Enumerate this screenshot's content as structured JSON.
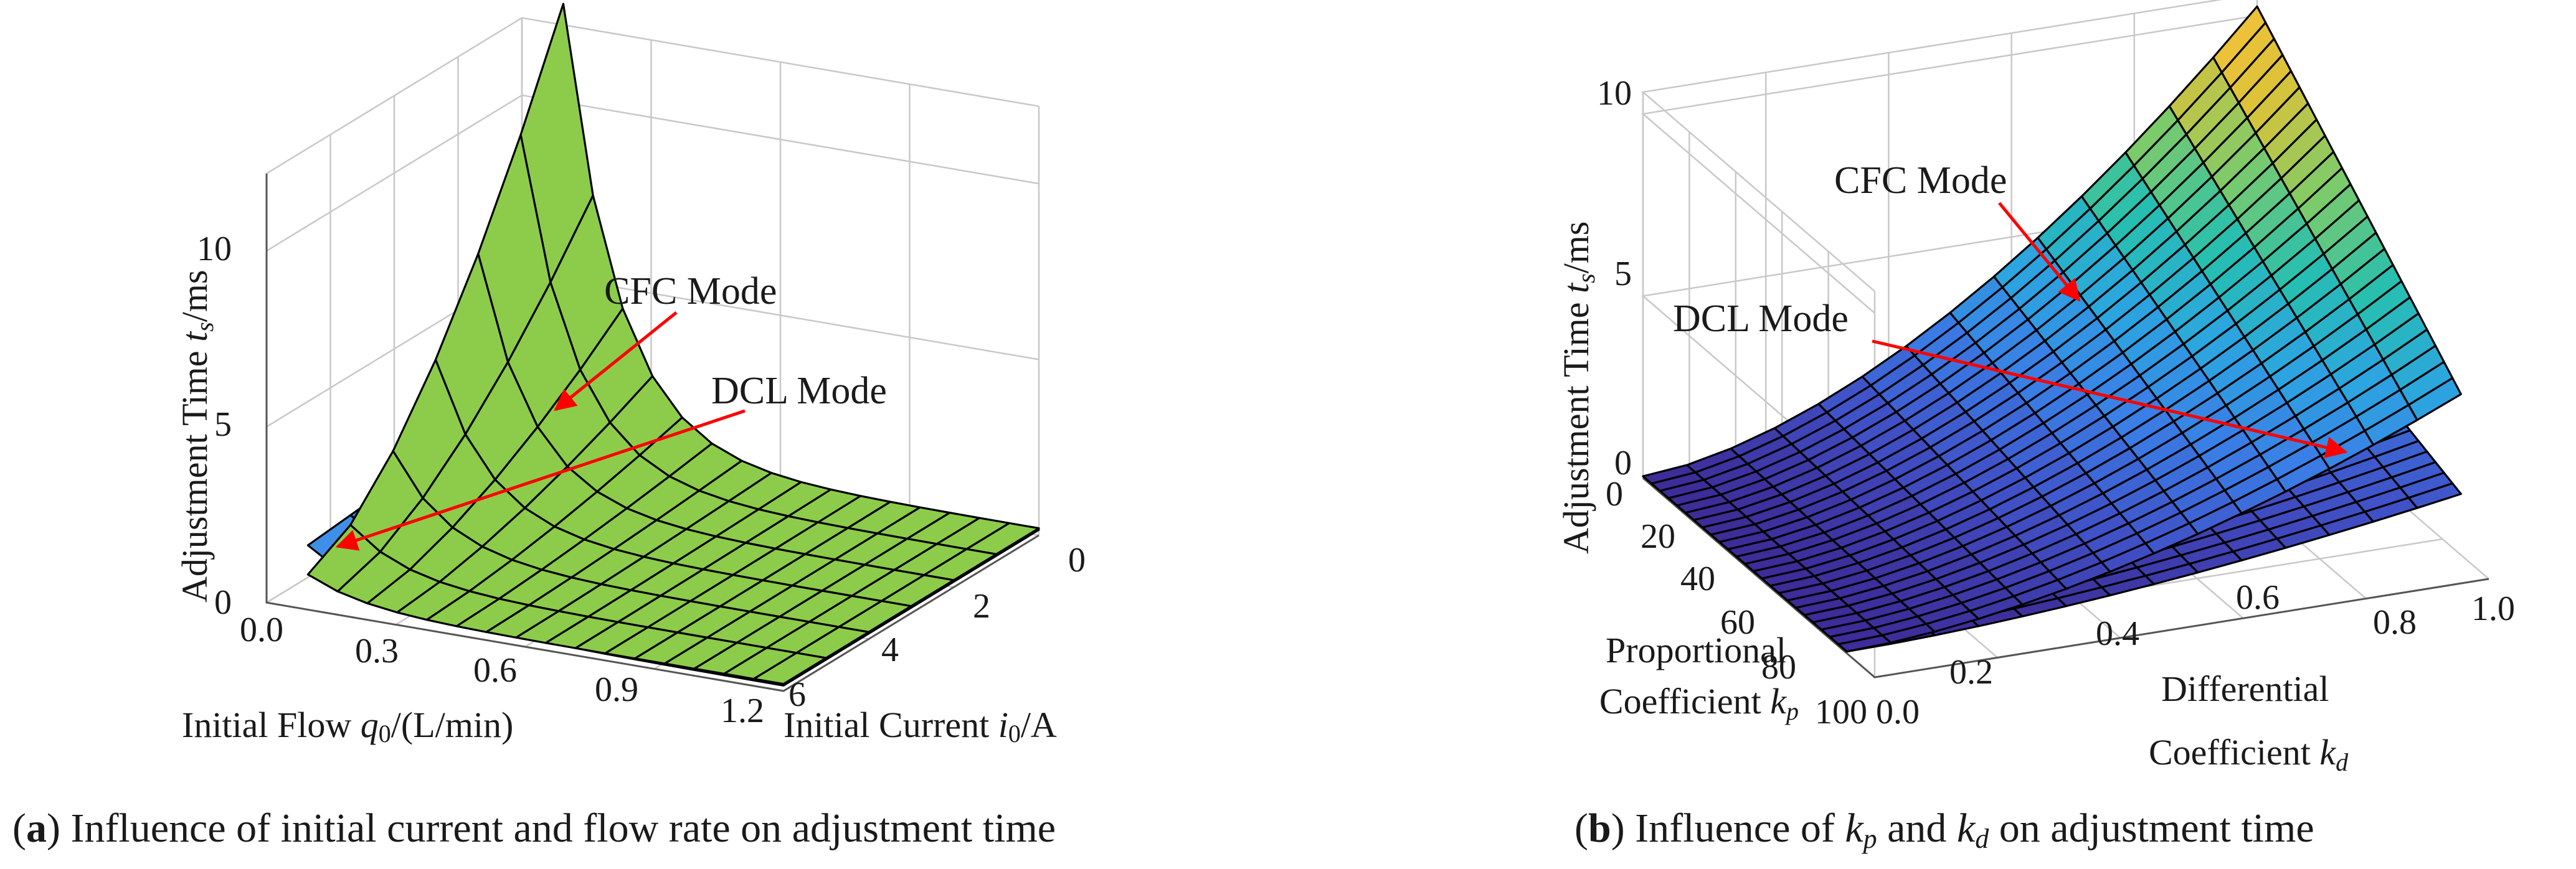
{
  "colors": {
    "cfc_a": "#8ccc4a",
    "dcl_a": "#3f8fe8",
    "arrow": "#ff0000",
    "viridis": [
      "#3d2a96",
      "#4052c8",
      "#3a7ee6",
      "#2ca5e0",
      "#26bfb0",
      "#7ccb6a",
      "#dcc238",
      "#f8c23a"
    ]
  },
  "caption_a": {
    "label": "a",
    "text": ") Influence of initial current and flow rate on adjustment time",
    "open": "("
  },
  "caption_b": {
    "label": "b",
    "text_pre": ") Influence of ",
    "kp": "k",
    "kp_sub": "p",
    "and": " and ",
    "kd": "k",
    "kd_sub": "d",
    "text_post": " on adjustment time",
    "open": "("
  },
  "chart_data": [
    {
      "type": "surface3d",
      "panel": "a",
      "zlabel": {
        "pre": "Adjustment Time ",
        "var": "t",
        "sub": "s",
        "post": "/ms"
      },
      "xlabel": {
        "pre": "Initial Flow ",
        "var": "q",
        "sub": "0",
        "post": "/(L/min)"
      },
      "ylabel": {
        "pre": "Initial Current ",
        "var": "i",
        "sub": "0",
        "post": "/A"
      },
      "z_ticks": [
        "0",
        "5",
        "10"
      ],
      "x_ticks": [
        "0.0",
        "0.3",
        "0.6",
        "0.9",
        "1.2"
      ],
      "y_ticks": [
        "0",
        "2",
        "4",
        "6"
      ],
      "zlim": [
        0,
        12
      ],
      "xlim": [
        0.0,
        1.2
      ],
      "ylim": [
        0,
        6
      ],
      "series": [
        {
          "name": "CFC Mode",
          "color": "#8ccc4a",
          "note": "ts approx 12.6 ms at i0=0, q0=0.1; decays with q0 and i0 toward ~0"
        },
        {
          "name": "DCL Mode",
          "color": "#3f8fe8",
          "note": "ts approx 2.7 ms at q0=0.1, decays to ~0"
        }
      ],
      "annotations": [
        "CFC Mode",
        "DCL Mode"
      ]
    },
    {
      "type": "surface3d",
      "panel": "b",
      "zlabel": {
        "pre": "Adjustment Time ",
        "var": "t",
        "sub": "s",
        "post": "/ms"
      },
      "xlabel": {
        "line1": "Proportional",
        "line2_pre": "Coefficient ",
        "var": "k",
        "sub": "p"
      },
      "ylabel": {
        "line1": "Differential",
        "line2_pre": "Coefficient ",
        "var": "k",
        "sub": "d"
      },
      "z_ticks": [
        "0",
        "5",
        "10"
      ],
      "x_ticks": [
        "0",
        "20",
        "40",
        "60",
        "80",
        "100"
      ],
      "y_ticks": [
        "0.0",
        "0.2",
        "0.4",
        "0.6",
        "0.8",
        "1.0"
      ],
      "zlim": [
        0,
        10
      ],
      "xlim": [
        0,
        100
      ],
      "ylim": [
        0.0,
        1.0
      ],
      "series": [
        {
          "name": "CFC Mode",
          "note": "ts rises to ~10 ms at kp=0, kd=1.0"
        },
        {
          "name": "DCL Mode",
          "note": "ts rises to ~3.5 ms at kp=0, kd=1.0"
        }
      ],
      "annotations": [
        "CFC Mode",
        "DCL Mode"
      ]
    }
  ]
}
